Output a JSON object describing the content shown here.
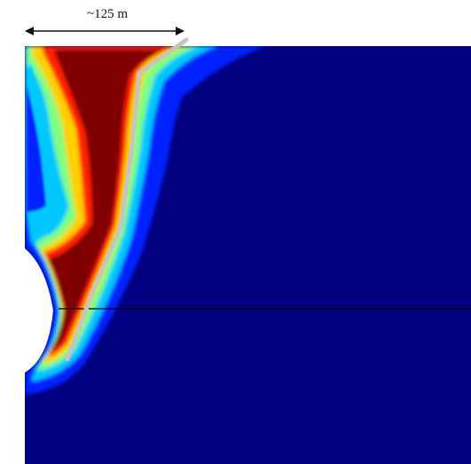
{
  "scale_bar": {
    "label": "~125 m"
  },
  "colors": {
    "background_field": "#000080",
    "low": "#0020ff",
    "mid_low": "#00c8ff",
    "mid": "#7fff7f",
    "mid_high": "#ffd000",
    "high": "#ff2000",
    "max": "#800000",
    "fault_trace": "#c4c4c4",
    "horizon_line": "#000000"
  }
}
